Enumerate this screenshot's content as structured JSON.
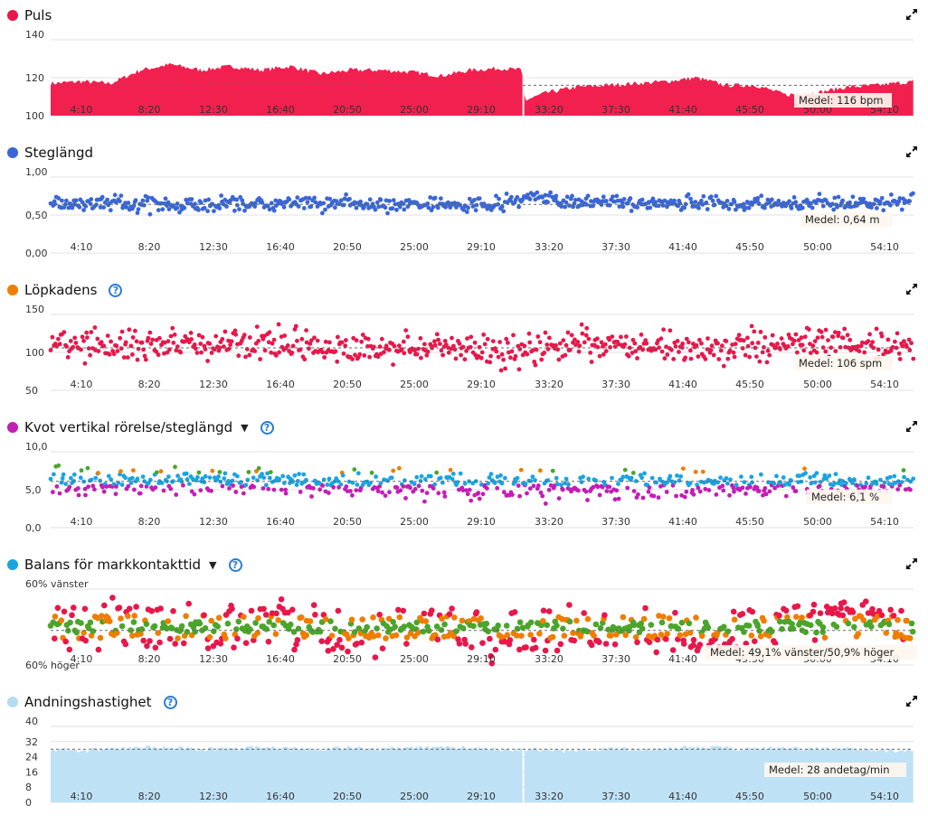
{
  "chart_data": [
    {
      "id": "puls",
      "type": "area",
      "title": "Puls",
      "dot_color": "#e8174a",
      "fill_color": "#f2204f",
      "has_help": false,
      "has_dropdown": false,
      "y_ticks": [
        "140",
        "120",
        "100"
      ],
      "ylim": [
        100,
        140
      ],
      "x_ticks": [
        "4:10",
        "8:20",
        "12:30",
        "16:40",
        "20:50",
        "25:00",
        "29:10",
        "33:20",
        "37:30",
        "41:40",
        "45:50",
        "50:00",
        "54:10"
      ],
      "x_range_minutes": [
        0,
        57.5
      ],
      "mean_label": "Medel: 116 bpm",
      "mean_value": 116,
      "gap_at_minutes": 31.5,
      "x": [
        0,
        2,
        4,
        6,
        8,
        10,
        12,
        14,
        16,
        18,
        20,
        22,
        24,
        26,
        28,
        30,
        31.4,
        31.6,
        33,
        35,
        37,
        39,
        41,
        43,
        45,
        47,
        49,
        51,
        53,
        55,
        57.5
      ],
      "values": [
        117,
        118,
        117,
        124,
        127,
        124,
        126,
        124,
        126,
        122,
        124,
        124,
        123,
        121,
        124,
        125,
        124,
        108,
        112,
        115,
        116,
        117,
        118,
        120,
        116,
        116,
        111,
        112,
        115,
        116,
        118
      ]
    },
    {
      "id": "steglangd",
      "type": "scatter",
      "title": "Steglängd",
      "dot_color": "#3a66d6",
      "point_color": "#3a66d6",
      "has_help": false,
      "has_dropdown": false,
      "y_ticks": [
        "1,00",
        "0,50",
        "0,00"
      ],
      "ylim": [
        0,
        1.0
      ],
      "x_ticks": [
        "4:10",
        "8:20",
        "12:30",
        "16:40",
        "20:50",
        "25:00",
        "29:10",
        "33:20",
        "37:30",
        "41:40",
        "45:50",
        "50:00",
        "54:10"
      ],
      "x_range_minutes": [
        0,
        57.5
      ],
      "mean_label": "Medel: 0,64 m",
      "mean_value": 0.64,
      "trend_x": [
        0,
        5,
        10,
        15,
        20,
        25,
        30,
        32,
        35,
        40,
        45,
        50,
        55,
        57.5
      ],
      "trend_y": [
        0.66,
        0.64,
        0.64,
        0.66,
        0.64,
        0.64,
        0.66,
        0.74,
        0.68,
        0.64,
        0.64,
        0.66,
        0.64,
        0.7
      ],
      "spread": 0.09
    },
    {
      "id": "lopkadens",
      "type": "scatter",
      "title": "Löpkadens",
      "dot_color": "#ef7d00",
      "point_color": "#e8174a",
      "has_help": true,
      "has_dropdown": false,
      "y_ticks": [
        "150",
        "100",
        "50"
      ],
      "ylim": [
        50,
        150
      ],
      "x_ticks": [
        "4:10",
        "8:20",
        "12:30",
        "16:40",
        "20:50",
        "25:00",
        "29:10",
        "33:20",
        "37:30",
        "41:40",
        "45:50",
        "50:00",
        "54:10"
      ],
      "x_range_minutes": [
        0,
        57.5
      ],
      "mean_label": "Medel: 106 spm",
      "mean_value": 106,
      "trend_x": [
        0,
        5,
        10,
        15,
        20,
        25,
        30,
        35,
        40,
        45,
        50,
        55,
        57.5
      ],
      "trend_y": [
        110,
        108,
        110,
        112,
        104,
        108,
        100,
        112,
        108,
        104,
        114,
        110,
        108
      ],
      "spread": 18
    },
    {
      "id": "kvot",
      "type": "scatter",
      "title": "Kvot vertikal rörelse/steglängd",
      "dot_color": "#c21eb6",
      "point_colors": [
        "#c21eb6",
        "#1ba3e0",
        "#4aa52a",
        "#ef7d00"
      ],
      "has_help": true,
      "has_dropdown": true,
      "y_ticks": [
        "10,0",
        "5,0",
        "0,0"
      ],
      "ylim": [
        0,
        10
      ],
      "x_ticks": [
        "4:10",
        "8:20",
        "12:30",
        "16:40",
        "20:50",
        "25:00",
        "29:10",
        "33:20",
        "37:30",
        "41:40",
        "45:50",
        "50:00",
        "54:10"
      ],
      "x_range_minutes": [
        0,
        57.5
      ],
      "mean_label": "Medel: 6,1 %",
      "mean_value": 6.1,
      "trend_x": [
        0,
        10,
        20,
        30,
        40,
        50,
        57.5
      ],
      "trend_y": [
        5.8,
        6.0,
        6.0,
        5.6,
        5.6,
        5.8,
        5.8
      ],
      "spread": 1.6
    },
    {
      "id": "balans",
      "type": "scatter",
      "title": "Balans för markkontakttid",
      "dot_color": "#1ba3e0",
      "point_colors": [
        "#e8174a",
        "#ef7d00",
        "#4aa52a"
      ],
      "has_help": true,
      "has_dropdown": true,
      "y_ticks": [
        "60% vänster",
        "60% höger"
      ],
      "ylim": [
        40,
        60
      ],
      "x_ticks": [
        "4:10",
        "8:20",
        "12:30",
        "16:40",
        "20:50",
        "25:00",
        "29:10",
        "33:20",
        "37:30",
        "41:40",
        "45:50",
        "50:00",
        "54:10"
      ],
      "x_range_minutes": [
        0,
        57.5
      ],
      "mean_label": "Medel: 49,1% vänster/50,9% höger",
      "mean_value": 49.1,
      "trend_x": [
        0,
        5,
        10,
        15,
        20,
        25,
        30,
        35,
        40,
        45,
        50,
        55,
        57.5
      ],
      "trend_y": [
        50,
        51,
        49,
        52,
        47,
        50,
        48,
        50,
        49,
        48,
        51,
        52,
        50
      ],
      "spread": 5
    },
    {
      "id": "andning",
      "type": "area",
      "title": "Andningshastighet",
      "dot_color": "#b4dcf3",
      "fill_color": "#bfe1f5",
      "has_help": true,
      "has_dropdown": false,
      "y_ticks": [
        "40",
        "32",
        "24",
        "16",
        "8",
        "0"
      ],
      "ylim": [
        0,
        40
      ],
      "x_ticks": [
        "4:10",
        "8:20",
        "12:30",
        "16:40",
        "20:50",
        "25:00",
        "29:10",
        "33:20",
        "37:30",
        "41:40",
        "45:50",
        "50:00",
        "54:10"
      ],
      "x_range_minutes": [
        0,
        57.5
      ],
      "mean_label": "Medel: 28 andetag/min",
      "mean_value": 28,
      "gap_at_minutes": 31.5,
      "x": [
        0,
        2,
        4,
        6,
        8,
        10,
        12,
        14,
        16,
        18,
        20,
        22,
        24,
        26,
        28,
        30,
        32,
        34,
        36,
        38,
        40,
        42,
        44,
        46,
        48,
        50,
        52,
        54,
        56,
        57.5
      ],
      "values": [
        28,
        27,
        28,
        29,
        29,
        28,
        28,
        29,
        28,
        28,
        29,
        28,
        29,
        29,
        29,
        28,
        28,
        27,
        28,
        28,
        28,
        29,
        29,
        28,
        29,
        28,
        29,
        28,
        27,
        28
      ]
    }
  ]
}
